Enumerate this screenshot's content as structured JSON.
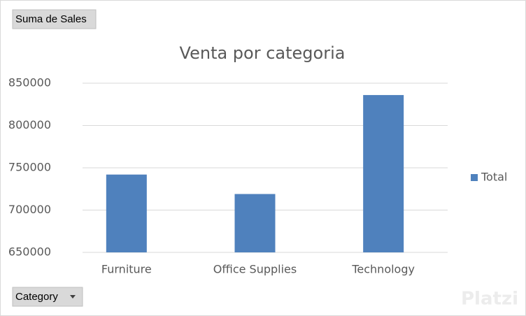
{
  "chart_data": {
    "type": "bar",
    "title": "Venta por categoria",
    "categories": [
      "Furniture",
      "Office Supplies",
      "Technology"
    ],
    "series": [
      {
        "name": "Total",
        "color": "#4f81bd",
        "values": [
          742000,
          719000,
          836000
        ]
      }
    ],
    "ylim": [
      650000,
      850000
    ],
    "yticks": [
      650000,
      700000,
      750000,
      800000,
      850000
    ],
    "grid": true,
    "legend": "right"
  },
  "field_buttons": {
    "values": "Suma de Sales",
    "axis": "Category"
  },
  "watermark": "Platzi"
}
